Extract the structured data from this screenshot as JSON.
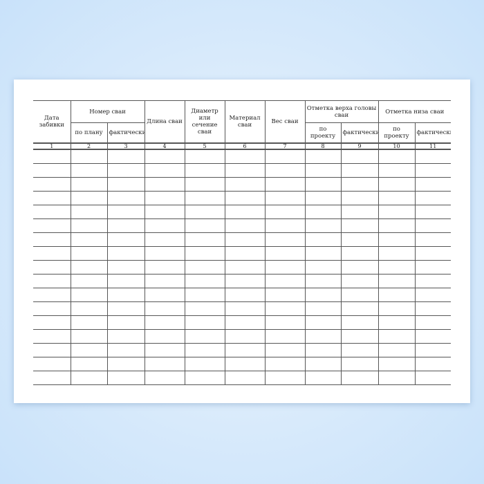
{
  "table": {
    "headers": {
      "date": "Дата забивки",
      "pile_number": "Номер сваи",
      "pile_number_plan": "по плану",
      "pile_number_actual": "фактически",
      "length": "Длина сваи",
      "diameter": "Диаметр или сечение сваи",
      "material": "Материал сваи",
      "weight": "Вес сваи",
      "top_mark": "Отметка верха головы сваи",
      "top_mark_project": "по проекту",
      "top_mark_actual": "фактически",
      "bottom_mark": "Отметка низа сваи",
      "bottom_mark_project": "по проекту",
      "bottom_mark_actual": "фактически"
    },
    "column_numbers": [
      "1",
      "2",
      "3",
      "4",
      "5",
      "6",
      "7",
      "8",
      "9",
      "10",
      "11"
    ]
  }
}
